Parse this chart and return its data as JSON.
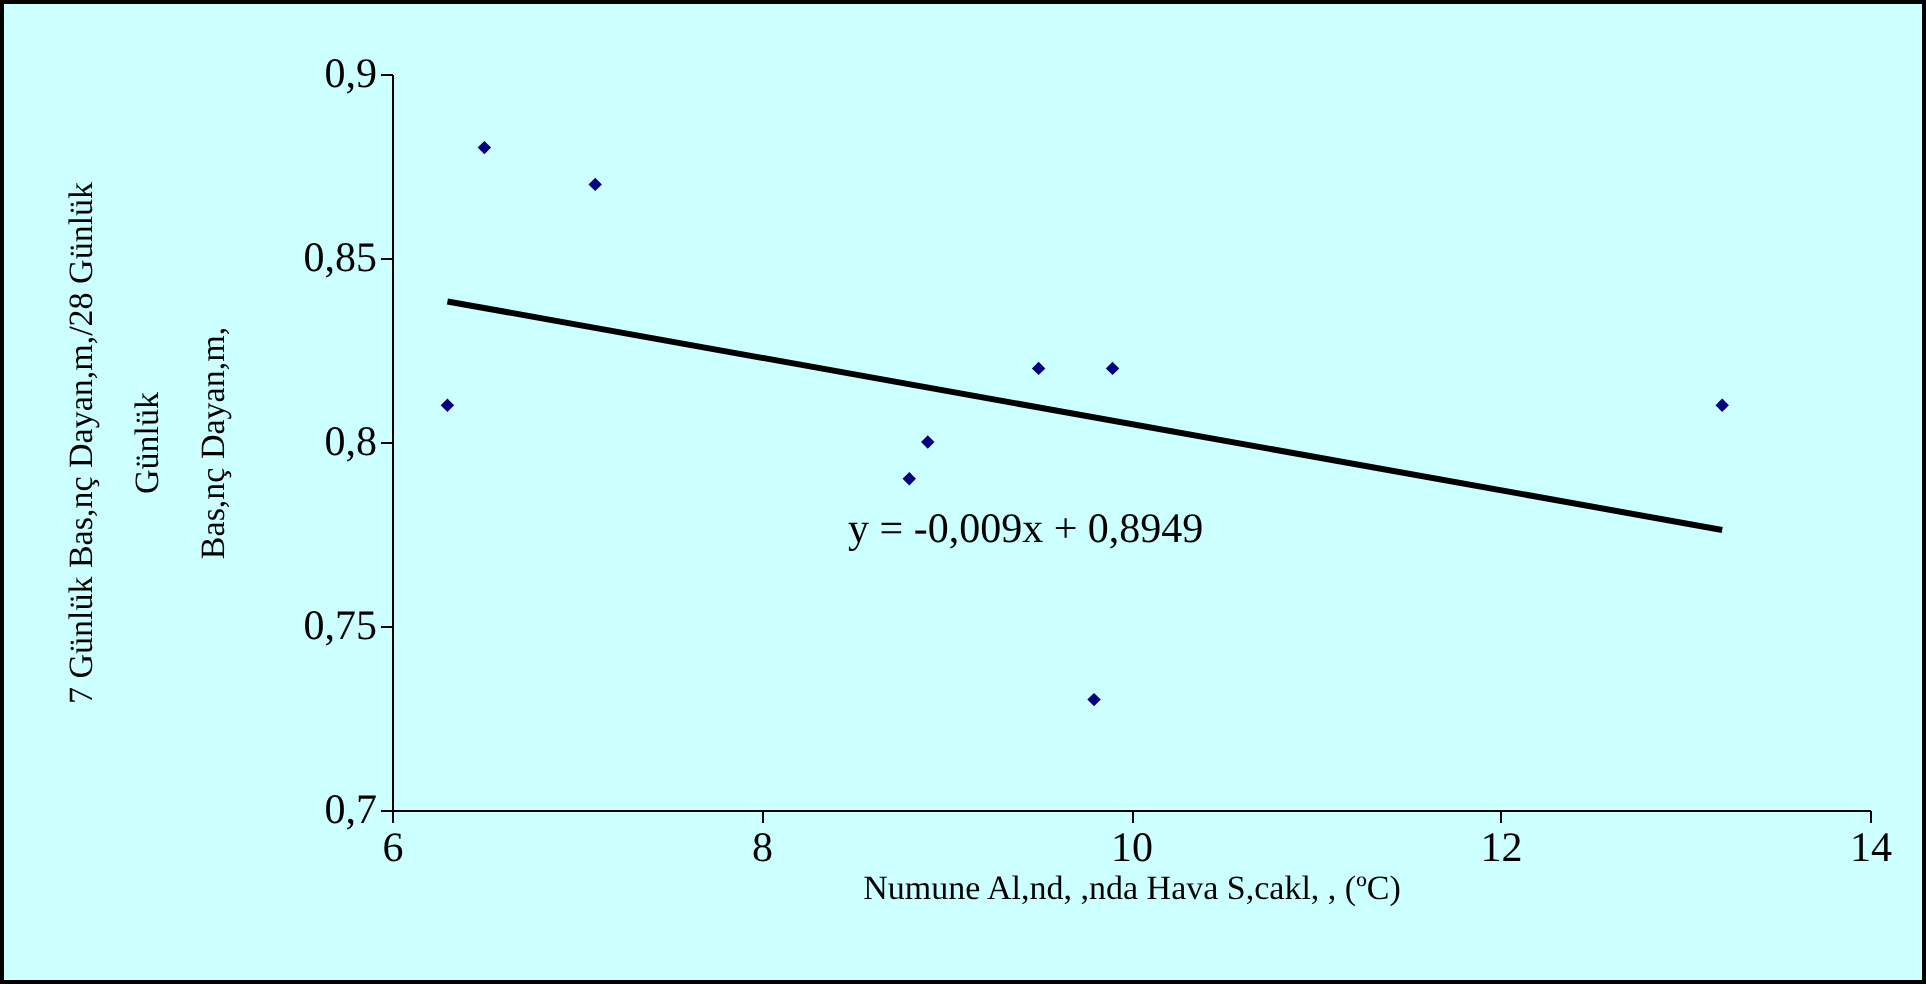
{
  "chart_data": {
    "type": "scatter",
    "xlabel": "Numune Al,nd,  ,nda Hava S,cakl,  , (ºC)",
    "ylabel": "7 Günlük Bas,nç Dayan,m,/28 Günlük\nGünlük\nBas,nç  Dayan,m,",
    "annotations": [
      "y = -0,009x + 0,8949"
    ],
    "xlim": [
      6,
      14
    ],
    "xticks": [
      6,
      8,
      10,
      12,
      14
    ],
    "ylim": [
      0.7,
      0.9
    ],
    "yticks": [
      {
        "value": 0.7,
        "label": "0,7"
      },
      {
        "value": 0.75,
        "label": "0,75"
      },
      {
        "value": 0.8,
        "label": "0,8"
      },
      {
        "value": 0.85,
        "label": "0,85"
      },
      {
        "value": 0.9,
        "label": "0,9"
      }
    ],
    "grid": false,
    "series": [
      {
        "color": "#000080",
        "marker": "diamond",
        "x": [
          6.3,
          6.5,
          7.1,
          8.8,
          8.9,
          9.5,
          9.9,
          9.8,
          13.2
        ],
        "values": [
          0.81,
          0.88,
          0.87,
          0.79,
          0.8,
          0.82,
          0.82,
          0.73,
          0.81
        ]
      },
      {
        "type": "line",
        "color": "#000000",
        "marker": "none",
        "x": [
          6.3,
          13.2
        ],
        "values": [
          0.8382,
          0.7761
        ]
      }
    ]
  }
}
